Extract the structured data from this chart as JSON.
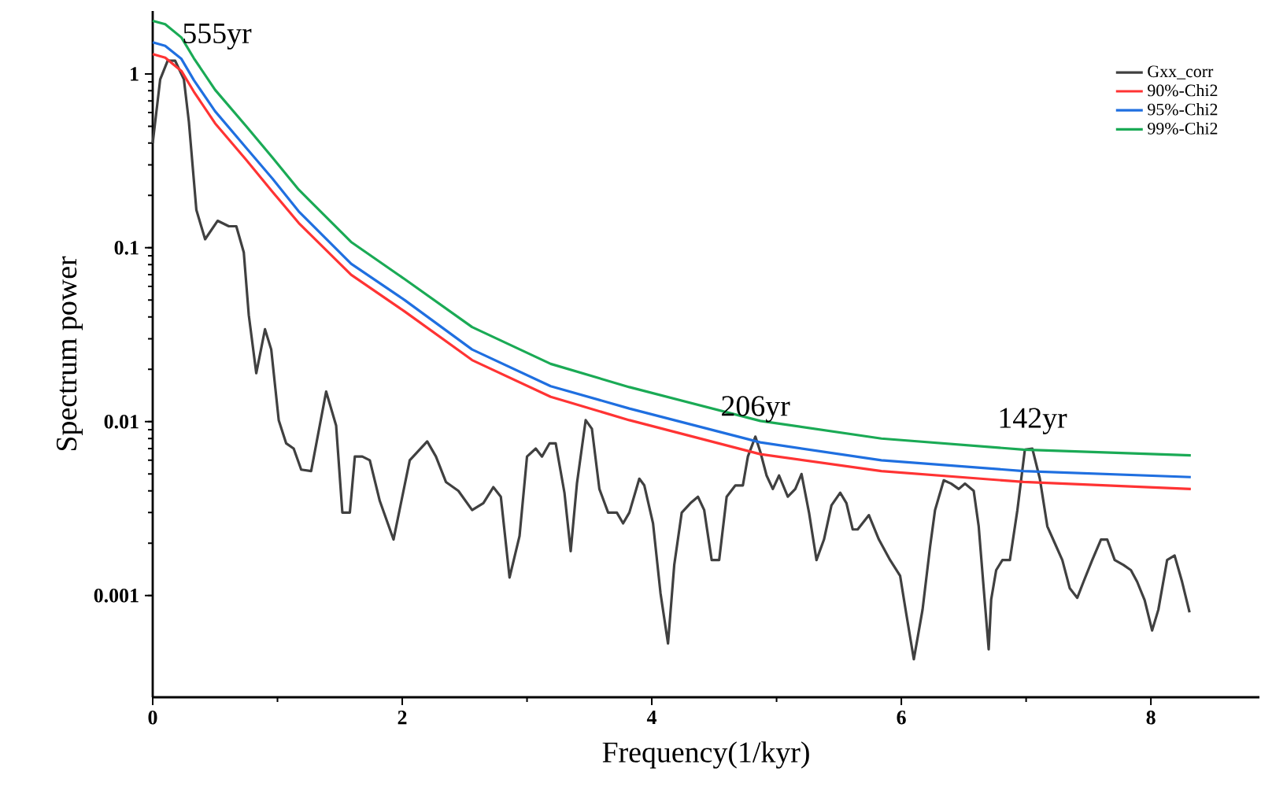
{
  "chart_data": {
    "type": "line",
    "xlabel": "Frequency(1/kyr)",
    "ylabel": "Spectrum power",
    "log": "y",
    "grid": false,
    "legend": "top right",
    "marker": "none",
    "line_style": "solid",
    "xlim": [
      0,
      8.87
    ],
    "ylim": [
      0.00026,
      2.3
    ],
    "xticks": [
      0,
      2,
      4,
      6,
      8
    ],
    "yticks": [
      0.001,
      0.01,
      0.1,
      1
    ],
    "annotations": [
      {
        "text": "555yr",
        "x": 0.12,
        "y": 1.19
      },
      {
        "text": "206yr",
        "x": 4.83,
        "y": 0.0082
      },
      {
        "text": "142yr",
        "x": 7.05,
        "y": 0.007
      }
    ],
    "series": [
      {
        "name": "Gxx_corr",
        "color": "#404040",
        "x": [
          0,
          0.06,
          0.12,
          0.18,
          0.25,
          0.29,
          0.35,
          0.42,
          0.52,
          0.61,
          0.67,
          0.73,
          0.77,
          0.83,
          0.9,
          0.95,
          1.01,
          1.07,
          1.13,
          1.19,
          1.27,
          1.39,
          1.47,
          1.52,
          1.58,
          1.62,
          1.68,
          1.74,
          1.82,
          1.93,
          2.06,
          2.2,
          2.27,
          2.35,
          2.45,
          2.56,
          2.65,
          2.73,
          2.79,
          2.86,
          2.94,
          3.0,
          3.07,
          3.12,
          3.18,
          3.23,
          3.3,
          3.35,
          3.4,
          3.47,
          3.52,
          3.58,
          3.65,
          3.72,
          3.77,
          3.82,
          3.9,
          3.94,
          4.01,
          4.07,
          4.13,
          4.18,
          4.24,
          4.31,
          4.37,
          4.42,
          4.48,
          4.54,
          4.6,
          4.67,
          4.73,
          4.77,
          4.83,
          4.87,
          4.92,
          4.97,
          5.02,
          5.09,
          5.15,
          5.2,
          5.26,
          5.32,
          5.38,
          5.44,
          5.51,
          5.56,
          5.61,
          5.65,
          5.74,
          5.82,
          5.91,
          5.99,
          6.04,
          6.1,
          6.17,
          6.23,
          6.27,
          6.34,
          6.4,
          6.46,
          6.51,
          6.58,
          6.62,
          6.66,
          6.7,
          6.72,
          6.76,
          6.81,
          6.87,
          6.93,
          6.99,
          7.05,
          7.11,
          7.17,
          7.23,
          7.29,
          7.35,
          7.41,
          7.46,
          7.53,
          7.6,
          7.65,
          7.71,
          7.78,
          7.84,
          7.89,
          7.95,
          8.01,
          8.06,
          8.13,
          8.19,
          8.25,
          8.31
        ],
        "values": [
          0.4,
          0.93,
          1.19,
          1.19,
          0.93,
          0.53,
          0.165,
          0.112,
          0.143,
          0.133,
          0.133,
          0.094,
          0.041,
          0.019,
          0.034,
          0.026,
          0.0102,
          0.0075,
          0.007,
          0.0053,
          0.0052,
          0.0149,
          0.0095,
          0.003,
          0.003,
          0.0063,
          0.0063,
          0.006,
          0.0035,
          0.0021,
          0.006,
          0.0077,
          0.0063,
          0.0045,
          0.004,
          0.0031,
          0.0034,
          0.0042,
          0.0037,
          0.00127,
          0.0022,
          0.0063,
          0.007,
          0.0063,
          0.0075,
          0.0075,
          0.0039,
          0.0018,
          0.0044,
          0.0102,
          0.0091,
          0.0041,
          0.003,
          0.003,
          0.0026,
          0.003,
          0.0047,
          0.0043,
          0.0026,
          0.00103,
          0.00053,
          0.0015,
          0.003,
          0.0034,
          0.0037,
          0.0031,
          0.0016,
          0.0016,
          0.0037,
          0.0043,
          0.0043,
          0.0063,
          0.0082,
          0.0067,
          0.0049,
          0.0041,
          0.0049,
          0.0037,
          0.0041,
          0.005,
          0.003,
          0.0016,
          0.0021,
          0.0033,
          0.0039,
          0.0034,
          0.0024,
          0.0024,
          0.0029,
          0.0021,
          0.0016,
          0.0013,
          0.00078,
          0.00043,
          0.00083,
          0.0019,
          0.0031,
          0.0046,
          0.0044,
          0.0041,
          0.0044,
          0.004,
          0.0025,
          0.0011,
          0.00049,
          0.00095,
          0.0014,
          0.0016,
          0.0016,
          0.0031,
          0.0069,
          0.007,
          0.0047,
          0.0025,
          0.002,
          0.0016,
          0.0011,
          0.00097,
          0.0012,
          0.0016,
          0.0021,
          0.0021,
          0.0016,
          0.0015,
          0.0014,
          0.0012,
          0.00094,
          0.00063,
          0.00083,
          0.0016,
          0.0017,
          0.0012,
          0.0008
        ]
      },
      {
        "name": "90%-Chi2",
        "color": "#ff3333",
        "x": [
          0,
          0.1,
          0.23,
          0.33,
          0.5,
          0.75,
          0.96,
          1.17,
          1.59,
          2.02,
          2.56,
          3.19,
          3.82,
          4.87,
          5.84,
          6.98,
          8.32
        ],
        "values": [
          1.3,
          1.24,
          1.04,
          0.79,
          0.52,
          0.32,
          0.21,
          0.139,
          0.07,
          0.043,
          0.0226,
          0.0139,
          0.0102,
          0.0065,
          0.0052,
          0.0045,
          0.0041
        ]
      },
      {
        "name": "95%-Chi2",
        "color": "#1f6fe0",
        "x": [
          0,
          0.1,
          0.23,
          0.33,
          0.5,
          0.75,
          0.96,
          1.17,
          1.59,
          2.02,
          2.56,
          3.19,
          3.82,
          4.87,
          5.84,
          6.98,
          8.32
        ],
        "values": [
          1.52,
          1.45,
          1.22,
          0.92,
          0.61,
          0.375,
          0.25,
          0.162,
          0.081,
          0.05,
          0.026,
          0.016,
          0.0119,
          0.0076,
          0.006,
          0.0052,
          0.0048
        ]
      },
      {
        "name": "99%-Chi2",
        "color": "#1aaa55",
        "x": [
          0,
          0.1,
          0.23,
          0.33,
          0.5,
          0.75,
          0.96,
          1.17,
          1.59,
          2.02,
          2.56,
          3.19,
          3.82,
          4.87,
          5.84,
          6.98,
          8.32
        ],
        "values": [
          2.02,
          1.93,
          1.62,
          1.23,
          0.81,
          0.5,
          0.33,
          0.216,
          0.108,
          0.066,
          0.035,
          0.0215,
          0.0158,
          0.0101,
          0.008,
          0.0069,
          0.0064
        ]
      }
    ]
  }
}
